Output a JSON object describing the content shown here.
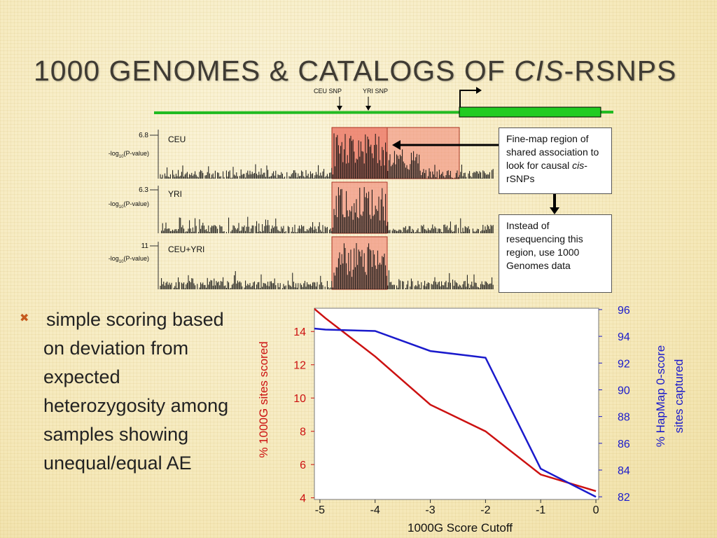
{
  "title": {
    "main": "1000 Genomes & Catalogs of ",
    "italic": "cis",
    "suffix": "-rSNPs"
  },
  "gene_map": {
    "snp_labels": [
      "CEU SNP",
      "YRI SNP"
    ]
  },
  "tracks": [
    {
      "name": "CEU",
      "max": "6.8",
      "ylabel": "-log10(P-value)"
    },
    {
      "name": "YRI",
      "max": "6.3",
      "ylabel": "-log10(P-value)"
    },
    {
      "name": "CEU+YRI",
      "max": "11",
      "ylabel": "-log10(P-value)"
    }
  ],
  "callouts": {
    "finemap_pre": "Fine-map region of shared association to look for causal ",
    "finemap_italic": "cis",
    "finemap_post": "-rSNPs",
    "instead": "Instead of resequencing this region, use 1000 Genomes data"
  },
  "bullet": {
    "icon": "x-mark-icon",
    "text": "simple scoring based on deviation from expected heterozygosity among samples showing unequal/equal AE"
  },
  "colors": {
    "left_series": "#cc1111",
    "right_series": "#1a1acc",
    "title": "#3f3b33",
    "green": "#22bb22",
    "highlight": "#f08070"
  },
  "chart_data": {
    "type": "line",
    "xlabel": "1000G Score Cutoff",
    "x": [
      -5,
      -4.8,
      -4,
      -3,
      -2,
      -1,
      0
    ],
    "x_ticks": [
      "-5",
      "-4",
      "-3",
      "-2",
      "-1",
      "0"
    ],
    "xlim": [
      -5.1,
      0.05
    ],
    "ylabel_left": "% 1000G sites scored",
    "ylabel_right_1": "% HapMap 0-score",
    "ylabel_right_2": "sites captured",
    "left_ticks": [
      "4",
      "6",
      "8",
      "10",
      "12",
      "14"
    ],
    "right_ticks": [
      "82",
      "84",
      "86",
      "88",
      "90",
      "92",
      "94",
      "96"
    ],
    "ylim_left": [
      3.9,
      15.4
    ],
    "ylim_right": [
      81.8,
      96.1
    ],
    "series": [
      {
        "axis": "left",
        "points": [
          [
            -5.15,
            15.5
          ],
          [
            -4.9,
            14.8
          ],
          [
            -4,
            12.5
          ],
          [
            -3,
            9.6
          ],
          [
            -2,
            8.0
          ],
          [
            -1,
            5.4
          ],
          [
            0,
            4.4
          ]
        ]
      },
      {
        "axis": "right",
        "points": [
          [
            -5.15,
            94.6
          ],
          [
            -4.9,
            94.5
          ],
          [
            -4,
            94.4
          ],
          [
            -3,
            92.9
          ],
          [
            -2,
            92.4
          ],
          [
            -1,
            84.1
          ],
          [
            0,
            82.0
          ]
        ]
      }
    ]
  }
}
